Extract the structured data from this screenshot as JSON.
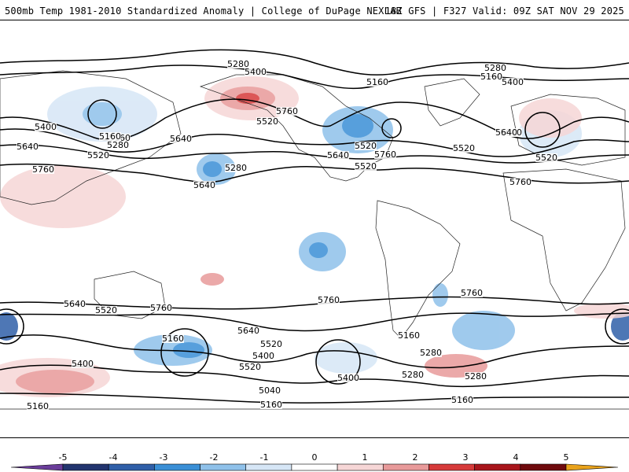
{
  "header": {
    "left": "500mb Temp 1981-2010 Standardized Anomaly | College of DuPage NEXLAB",
    "right": "18Z GFS | F327 Valid: 09Z SAT NOV 29 2025"
  },
  "contour_labels": [
    "5280",
    "5400",
    "5160",
    "5280",
    "5400",
    "5160",
    "5640",
    "5520",
    "5160",
    "5400",
    "5160",
    "5280",
    "5640",
    "5520",
    "5640",
    "5280",
    "5760",
    "5640",
    "5760",
    "5520",
    "5520",
    "5760",
    "5640",
    "5520",
    "5760",
    "5640",
    "5520",
    "5760",
    "5760",
    "5640",
    "5520",
    "5760",
    "5160",
    "5640",
    "5520",
    "5400",
    "5400",
    "5520",
    "5400",
    "5280",
    "5040",
    "5160",
    "5160",
    "5280",
    "5160",
    "5160",
    "5280"
  ],
  "colorbar": {
    "ticks": [
      "-5",
      "-4",
      "-3",
      "-2",
      "-1",
      "0",
      "1",
      "2",
      "3",
      "4",
      "5"
    ],
    "colors": [
      "#6a3d9a",
      "#22346e",
      "#2f5fa8",
      "#3a8fd6",
      "#8fc1ea",
      "#d6e6f6",
      "#ffffff",
      "#f6d6d6",
      "#e89a9a",
      "#d63a3a",
      "#a8151b",
      "#6f0a0d",
      "#e8a21b"
    ]
  }
}
